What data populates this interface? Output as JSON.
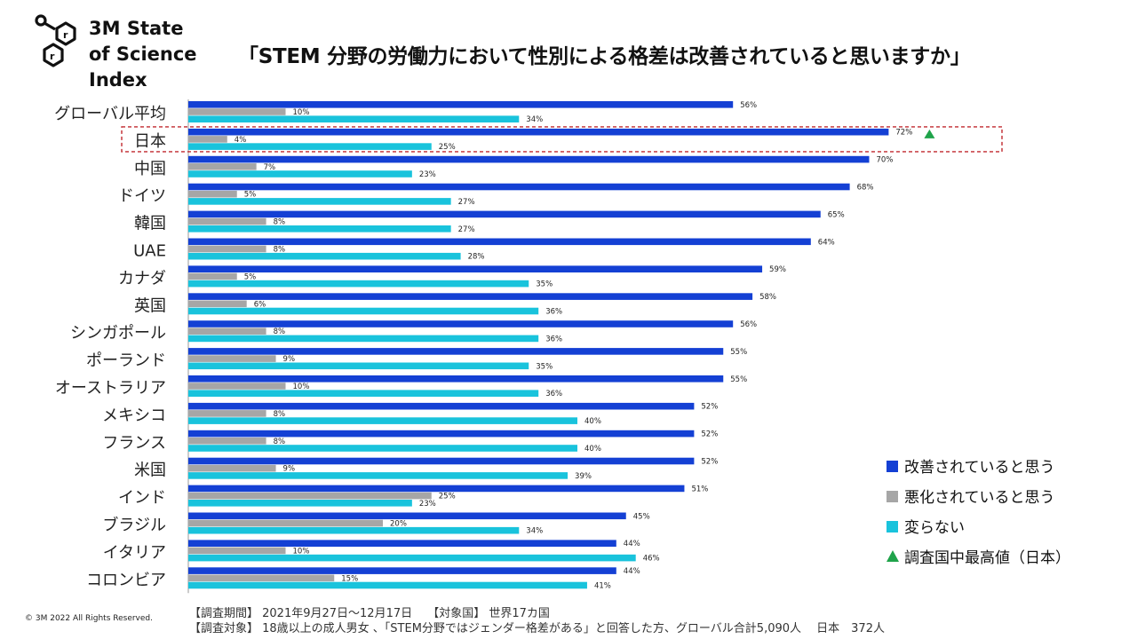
{
  "logo": {
    "text": "3M State\nof Science\nIndex",
    "icon": "hexagon-molecule-icon"
  },
  "title": "「STEM 分野の労働力において性別による格差は改善されていると思いますか」",
  "colors": {
    "improved": "#1440d4",
    "worsened": "#a6a6a6",
    "unchanged": "#19c3dc",
    "highest_marker": "#1fa34a",
    "highlight_box": "#c0282d"
  },
  "chart_data": {
    "type": "bar",
    "orientation": "horizontal",
    "categories": [
      "グローバル平均",
      "日本",
      "中国",
      "ドイツ",
      "韓国",
      "UAE",
      "カナダ",
      "英国",
      "シンガポール",
      "ポーランド",
      "オーストラリア",
      "メキシコ",
      "フランス",
      "米国",
      "インド",
      "ブラジル",
      "イタリア",
      "コロンビア"
    ],
    "series": [
      {
        "name": "改善されていると思う",
        "values": [
          56,
          72,
          70,
          68,
          65,
          64,
          59,
          58,
          56,
          55,
          55,
          52,
          52,
          52,
          51,
          45,
          44,
          44
        ]
      },
      {
        "name": "悪化されていると思う",
        "values": [
          10,
          4,
          7,
          5,
          8,
          8,
          5,
          6,
          8,
          9,
          10,
          8,
          8,
          9,
          25,
          20,
          10,
          15
        ]
      },
      {
        "name": "変らない",
        "values": [
          34,
          25,
          23,
          27,
          27,
          28,
          35,
          36,
          36,
          35,
          36,
          40,
          40,
          39,
          23,
          34,
          46,
          41
        ]
      }
    ],
    "value_suffix": "%",
    "highlighted_category": "日本",
    "highest_marker_category": "日本",
    "xlim": [
      0,
      100
    ],
    "grid": false,
    "legend_position": "right-bottom"
  },
  "legend": [
    {
      "label": "改善されていると思う",
      "swatch": "square",
      "color": "#1440d4"
    },
    {
      "label": "悪化されていると思う",
      "swatch": "square",
      "color": "#a6a6a6"
    },
    {
      "label": "変らない",
      "swatch": "square",
      "color": "#19c3dc"
    },
    {
      "label": "調査国中最高値（日本）",
      "swatch": "triangle",
      "color": "#1fa34a"
    }
  ],
  "footer": {
    "copyright": "© 3M  2022     All Rights Reserved.",
    "note1": "【調査期間】 2021年9月27日～12月17日　  【対象国】 世界17カ国",
    "note2": "【調査対象】 18歳以上の成人男女 、「STEM分野ではジェンダー格差がある」と回答した方、グローバル合計5,090人　 日本　372人"
  }
}
